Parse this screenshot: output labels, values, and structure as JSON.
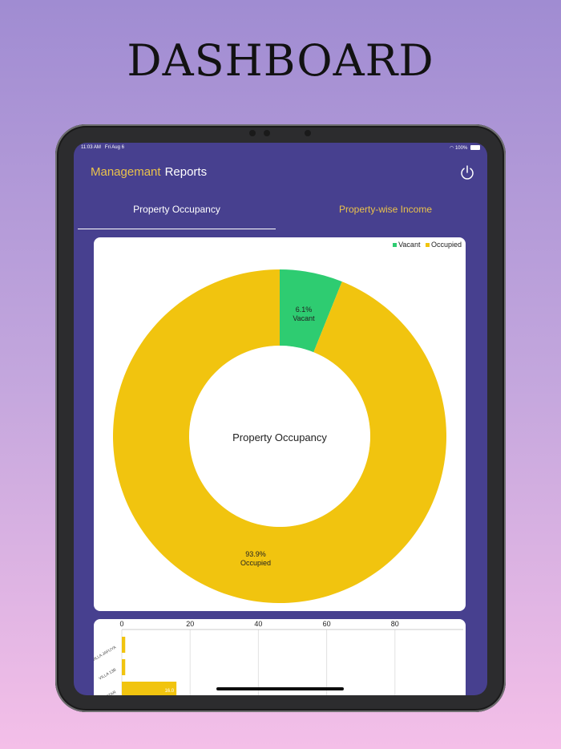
{
  "headline": "DASHBOARD",
  "status_bar": {
    "time": "11:03 AM",
    "date": "Fri Aug 6",
    "battery": "100%"
  },
  "nav": {
    "title_primary": "Managemant",
    "title_secondary": "Reports"
  },
  "tabs": [
    {
      "label": "Property Occupancy",
      "active": true
    },
    {
      "label": "Property-wise Income",
      "active": false
    }
  ],
  "colors": {
    "background": "#47408f",
    "accent": "#eac24b",
    "vacant": "#2ecc71",
    "occupied": "#f1c40f"
  },
  "chart_data": [
    {
      "type": "pie",
      "title": "Property Occupancy",
      "center_label": "Property Occupancy",
      "legend": [
        "Vacant",
        "Occupied"
      ],
      "legend_position": "top-right",
      "slices": [
        {
          "label": "Vacant",
          "value": 6.1,
          "display": "6.1%"
        },
        {
          "label": "Occupied",
          "value": 93.9,
          "display": "93.9%"
        }
      ]
    },
    {
      "type": "bar",
      "orientation": "horizontal",
      "x_ticks": [
        "0",
        "20",
        "40",
        "60",
        "80"
      ],
      "xlim": [
        0,
        100
      ],
      "categories": [
        "VILLA JAFUYA",
        "VILLA 13B",
        "STAR"
      ],
      "values": [
        1,
        1,
        16
      ],
      "value_labels": [
        "",
        "",
        "16.0"
      ]
    }
  ]
}
